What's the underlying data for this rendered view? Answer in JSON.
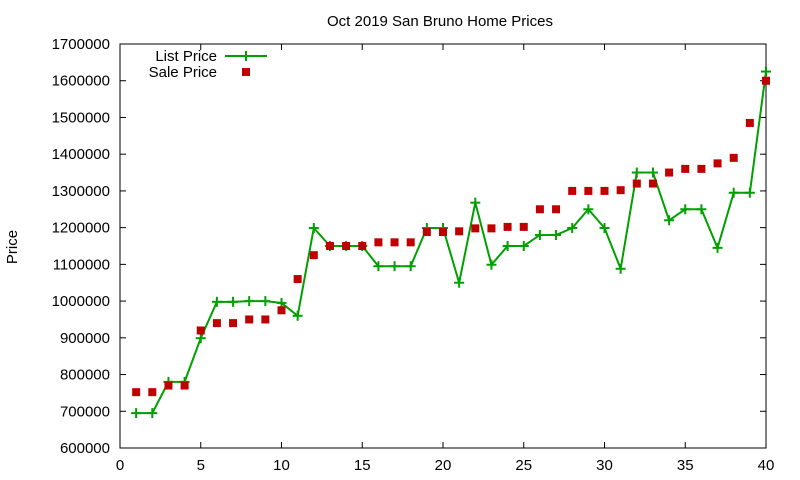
{
  "chart_data": {
    "type": "line",
    "title": "Oct 2019 San Bruno Home Prices",
    "xlabel": "",
    "ylabel": "Price",
    "xlim": [
      0,
      40
    ],
    "ylim": [
      600000,
      1700000
    ],
    "x_ticks": [
      "0",
      "5",
      "10",
      "15",
      "20",
      "25",
      "30",
      "35",
      "40"
    ],
    "y_ticks": [
      "600000",
      "700000",
      "800000",
      "900000",
      "1000000",
      "1100000",
      "1200000",
      "1300000",
      "1400000",
      "1500000",
      "1600000",
      "1700000"
    ],
    "grid": false,
    "legend_position": "top-left",
    "colors": {
      "list": "#00a000",
      "sale": "#c00000",
      "axis": "#000000"
    },
    "x": [
      1,
      2,
      3,
      4,
      5,
      6,
      7,
      8,
      9,
      10,
      11,
      12,
      13,
      14,
      15,
      16,
      17,
      18,
      19,
      20,
      21,
      22,
      23,
      24,
      25,
      26,
      27,
      28,
      29,
      30,
      31,
      32,
      33,
      34,
      35,
      36,
      37,
      38,
      39,
      40
    ],
    "series": [
      {
        "name": "List Price",
        "style": "lines+crosses",
        "values": [
          695000,
          695000,
          780000,
          780000,
          899000,
          998000,
          998000,
          1000000,
          1000000,
          995000,
          960000,
          1199000,
          1150000,
          1150000,
          1150000,
          1095000,
          1095000,
          1095000,
          1199000,
          1199000,
          1050000,
          1268000,
          1099000,
          1150000,
          1150000,
          1180000,
          1180000,
          1199000,
          1250000,
          1199000,
          1088000,
          1350000,
          1350000,
          1220000,
          1250000,
          1250000,
          1145000,
          1295000,
          1295000,
          1625000
        ]
      },
      {
        "name": "Sale Price",
        "style": "squares",
        "values": [
          752000,
          752000,
          770000,
          770000,
          920000,
          940000,
          940000,
          950000,
          950000,
          975000,
          1060000,
          1125000,
          1150000,
          1150000,
          1150000,
          1160000,
          1160000,
          1160000,
          1188000,
          1188000,
          1190000,
          1198000,
          1198000,
          1202000,
          1202000,
          1250000,
          1250000,
          1300000,
          1300000,
          1300000,
          1302000,
          1320000,
          1320000,
          1350000,
          1360000,
          1360000,
          1375000,
          1390000,
          1485000,
          1600000
        ]
      }
    ]
  }
}
